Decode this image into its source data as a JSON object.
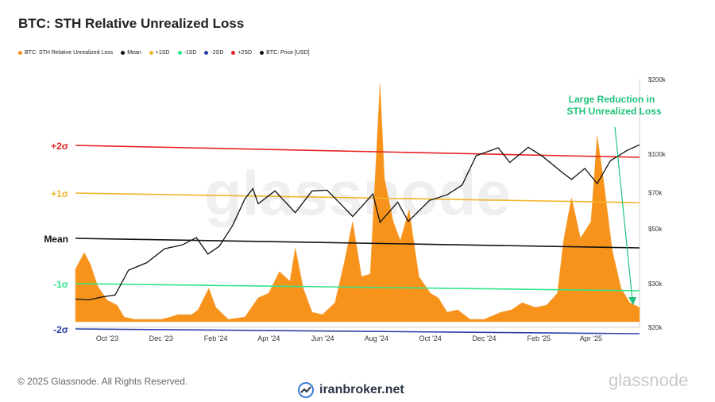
{
  "title": "BTC: STH Relative Unrealized Loss",
  "legend": [
    {
      "label": "BTC: STH Relative Unrealized Loss",
      "color": "#f7931a"
    },
    {
      "label": "Mean",
      "color": "#111111"
    },
    {
      "label": "+1SD",
      "color": "#f0b429"
    },
    {
      "label": "-1SD",
      "color": "#33e58a"
    },
    {
      "label": "-2SD",
      "color": "#2a3fa6"
    },
    {
      "label": "+2SD",
      "color": "#e62222"
    },
    {
      "label": "BTC: Price [USD]",
      "color": "#111111"
    }
  ],
  "annotation": {
    "line1": "Large Reduction in",
    "line2": "STH Unrealized Loss",
    "color": "#1ec27a"
  },
  "footer": {
    "copyright": "© 2025 Glassnode. All Rights Reserved.",
    "brand": "iranbroker.net",
    "watermark": "glassnode"
  },
  "chart_data": {
    "type": "area",
    "title": "BTC: STH Relative Unrealized Loss",
    "x_ticks": [
      "Oct '23",
      "Dec '23",
      "Feb '24",
      "Apr '24",
      "Jun '24",
      "Aug '24",
      "Oct '24",
      "Dec '24",
      "Feb '25",
      "Apr '25"
    ],
    "x_range": [
      "2023-08-26",
      "2025-05-26"
    ],
    "y_price_ticks": [
      "$20k",
      "$30k",
      "$50k",
      "$70k",
      "$100k",
      "$200k"
    ],
    "y_price_scale": "log",
    "y_price_range": [
      20000,
      200000
    ],
    "band_labels": [
      {
        "label": "+2σ",
        "color": "#e62222"
      },
      {
        "label": "+1σ",
        "color": "#f0b429"
      },
      {
        "label": "Mean",
        "color": "#111111"
      },
      {
        "label": "-1σ",
        "color": "#33e58a"
      },
      {
        "label": "-2σ",
        "color": "#2a3fa6"
      }
    ],
    "series": [
      {
        "name": "BTC: STH Relative Unrealized Loss",
        "color": "#f7931a",
        "points": [
          [
            "2023-08-26",
            0.22
          ],
          [
            "2023-09-05",
            0.29
          ],
          [
            "2023-09-12",
            0.24
          ],
          [
            "2023-09-20",
            0.15
          ],
          [
            "2023-10-01",
            0.09
          ],
          [
            "2023-10-12",
            0.07
          ],
          [
            "2023-10-20",
            0.02
          ],
          [
            "2023-11-01",
            0.01
          ],
          [
            "2023-12-01",
            0.01
          ],
          [
            "2023-12-12",
            0.02
          ],
          [
            "2023-12-20",
            0.03
          ],
          [
            "2024-01-05",
            0.03
          ],
          [
            "2024-01-12",
            0.05
          ],
          [
            "2024-01-24",
            0.14
          ],
          [
            "2024-02-01",
            0.06
          ],
          [
            "2024-02-15",
            0.01
          ],
          [
            "2024-03-05",
            0.02
          ],
          [
            "2024-03-20",
            0.1
          ],
          [
            "2024-04-01",
            0.12
          ],
          [
            "2024-04-13",
            0.21
          ],
          [
            "2024-04-25",
            0.17
          ],
          [
            "2024-05-01",
            0.31
          ],
          [
            "2024-05-10",
            0.14
          ],
          [
            "2024-05-20",
            0.04
          ],
          [
            "2024-06-01",
            0.03
          ],
          [
            "2024-06-15",
            0.08
          ],
          [
            "2024-06-25",
            0.24
          ],
          [
            "2024-07-05",
            0.42
          ],
          [
            "2024-07-15",
            0.19
          ],
          [
            "2024-07-25",
            0.2
          ],
          [
            "2024-08-05",
            1.0
          ],
          [
            "2024-08-10",
            0.6
          ],
          [
            "2024-08-20",
            0.42
          ],
          [
            "2024-08-28",
            0.34
          ],
          [
            "2024-09-07",
            0.47
          ],
          [
            "2024-09-18",
            0.19
          ],
          [
            "2024-10-01",
            0.12
          ],
          [
            "2024-10-10",
            0.1
          ],
          [
            "2024-10-20",
            0.04
          ],
          [
            "2024-11-01",
            0.05
          ],
          [
            "2024-11-15",
            0.01
          ],
          [
            "2024-12-01",
            0.01
          ],
          [
            "2024-12-20",
            0.04
          ],
          [
            "2025-01-01",
            0.05
          ],
          [
            "2025-01-13",
            0.08
          ],
          [
            "2025-01-28",
            0.06
          ],
          [
            "2025-02-10",
            0.07
          ],
          [
            "2025-02-22",
            0.12
          ],
          [
            "2025-03-01",
            0.34
          ],
          [
            "2025-03-10",
            0.52
          ],
          [
            "2025-03-20",
            0.35
          ],
          [
            "2025-04-01",
            0.42
          ],
          [
            "2025-04-08",
            0.78
          ],
          [
            "2025-04-15",
            0.6
          ],
          [
            "2025-04-25",
            0.3
          ],
          [
            "2025-05-05",
            0.14
          ],
          [
            "2025-05-15",
            0.08
          ],
          [
            "2025-05-26",
            0.06
          ]
        ]
      },
      {
        "name": "BTC: Price [USD]",
        "color": "#111111",
        "points": [
          [
            "2023-08-26",
            26000
          ],
          [
            "2023-09-10",
            25800
          ],
          [
            "2023-09-25",
            26500
          ],
          [
            "2023-10-10",
            27000
          ],
          [
            "2023-10-25",
            34000
          ],
          [
            "2023-11-15",
            36500
          ],
          [
            "2023-12-05",
            41500
          ],
          [
            "2023-12-25",
            43000
          ],
          [
            "2024-01-10",
            46000
          ],
          [
            "2024-01-23",
            39500
          ],
          [
            "2024-02-05",
            42500
          ],
          [
            "2024-02-20",
            51500
          ],
          [
            "2024-03-05",
            66000
          ],
          [
            "2024-03-14",
            72500
          ],
          [
            "2024-03-20",
            63000
          ],
          [
            "2024-04-08",
            71000
          ],
          [
            "2024-04-20",
            64000
          ],
          [
            "2024-05-01",
            58000
          ],
          [
            "2024-05-20",
            71000
          ],
          [
            "2024-06-06",
            71500
          ],
          [
            "2024-06-25",
            61000
          ],
          [
            "2024-07-05",
            56000
          ],
          [
            "2024-07-28",
            69000
          ],
          [
            "2024-08-05",
            53000
          ],
          [
            "2024-08-25",
            64000
          ],
          [
            "2024-09-06",
            53500
          ],
          [
            "2024-09-30",
            65000
          ],
          [
            "2024-10-20",
            68500
          ],
          [
            "2024-11-06",
            75000
          ],
          [
            "2024-11-22",
            98500
          ],
          [
            "2024-12-17",
            106000
          ],
          [
            "2024-12-30",
            92500
          ],
          [
            "2025-01-20",
            106500
          ],
          [
            "2025-02-05",
            98000
          ],
          [
            "2025-02-28",
            84000
          ],
          [
            "2025-03-10",
            79000
          ],
          [
            "2025-03-25",
            87500
          ],
          [
            "2025-04-08",
            76000
          ],
          [
            "2025-04-23",
            94000
          ],
          [
            "2025-05-12",
            103500
          ],
          [
            "2025-05-26",
            109000
          ]
        ]
      },
      {
        "name": "+2SD",
        "color": "#e62222",
        "points": [
          [
            "2023-08-26",
            0.74
          ],
          [
            "2025-05-26",
            0.69
          ]
        ]
      },
      {
        "name": "+1SD",
        "color": "#f0b429",
        "points": [
          [
            "2023-08-26",
            0.54
          ],
          [
            "2025-05-26",
            0.5
          ]
        ]
      },
      {
        "name": "Mean",
        "color": "#111111",
        "points": [
          [
            "2023-08-26",
            0.35
          ],
          [
            "2025-05-26",
            0.31
          ]
        ]
      },
      {
        "name": "-1SD",
        "color": "#33e58a",
        "points": [
          [
            "2023-08-26",
            0.16
          ],
          [
            "2025-05-26",
            0.13
          ]
        ]
      },
      {
        "name": "-2SD",
        "color": "#2a3fa6",
        "points": [
          [
            "2023-08-26",
            -0.03
          ],
          [
            "2025-05-26",
            -0.05
          ]
        ]
      }
    ]
  }
}
